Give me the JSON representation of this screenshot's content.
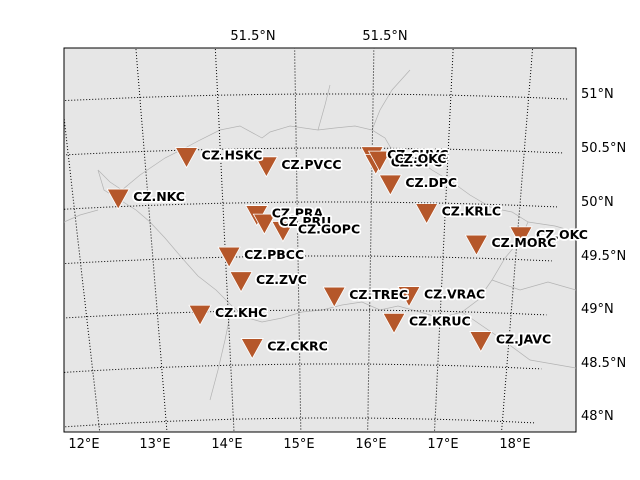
{
  "map": {
    "network": "CZ",
    "marker_color": "#b5572a",
    "background_color": "#e6e6e6",
    "lon_labels": [
      "12°E",
      "13°E",
      "14°E",
      "15°E",
      "16°E",
      "17°E",
      "18°E"
    ],
    "lat_labels": [
      "48°N",
      "48.5°N",
      "49°N",
      "49.5°N",
      "50°N",
      "50.5°N",
      "51°N"
    ],
    "top_labels": [
      "51.5°N",
      "51.5°N"
    ],
    "stations": [
      {
        "code": "CZ.HSKC",
        "lon": 13.55,
        "lat": 50.43
      },
      {
        "code": "CZ.PVCC",
        "lon": 14.6,
        "lat": 50.33
      },
      {
        "code": "CZ.CHVC",
        "lon": 16.0,
        "lat": 50.42
      },
      {
        "code": "CZ.UPC",
        "lon": 16.05,
        "lat": 50.35
      },
      {
        "code": "CZ.OKC",
        "lon": 16.1,
        "lat": 50.38
      },
      {
        "code": "CZ.DPC",
        "lon": 16.25,
        "lat": 50.16
      },
      {
        "code": "CZ.NKC",
        "lon": 12.6,
        "lat": 50.07
      },
      {
        "code": "CZ.KRLC",
        "lon": 16.75,
        "lat": 49.9
      },
      {
        "code": "CZ.PRA",
        "lon": 14.45,
        "lat": 49.88
      },
      {
        "code": "CZ.PRU",
        "lon": 14.55,
        "lat": 49.8
      },
      {
        "code": "CZ.GOPC",
        "lon": 14.8,
        "lat": 49.73
      },
      {
        "code": "CZ.OKC",
        "lon": 18.05,
        "lat": 49.71
      },
      {
        "code": "CZ.MORC",
        "lon": 17.45,
        "lat": 49.62
      },
      {
        "code": "CZ.PBCC",
        "lon": 14.05,
        "lat": 49.5
      },
      {
        "code": "CZ.ZVC",
        "lon": 14.2,
        "lat": 49.27
      },
      {
        "code": "CZ.TREC",
        "lon": 15.5,
        "lat": 49.12
      },
      {
        "code": "CZ.VRAC",
        "lon": 16.55,
        "lat": 49.13
      },
      {
        "code": "CZ.KHC",
        "lon": 13.6,
        "lat": 48.97
      },
      {
        "code": "CZ.KRUC",
        "lon": 16.35,
        "lat": 48.88
      },
      {
        "code": "CZ.JAVC",
        "lon": 17.6,
        "lat": 48.73
      },
      {
        "code": "CZ.CKRC",
        "lon": 14.32,
        "lat": 48.65
      }
    ]
  }
}
